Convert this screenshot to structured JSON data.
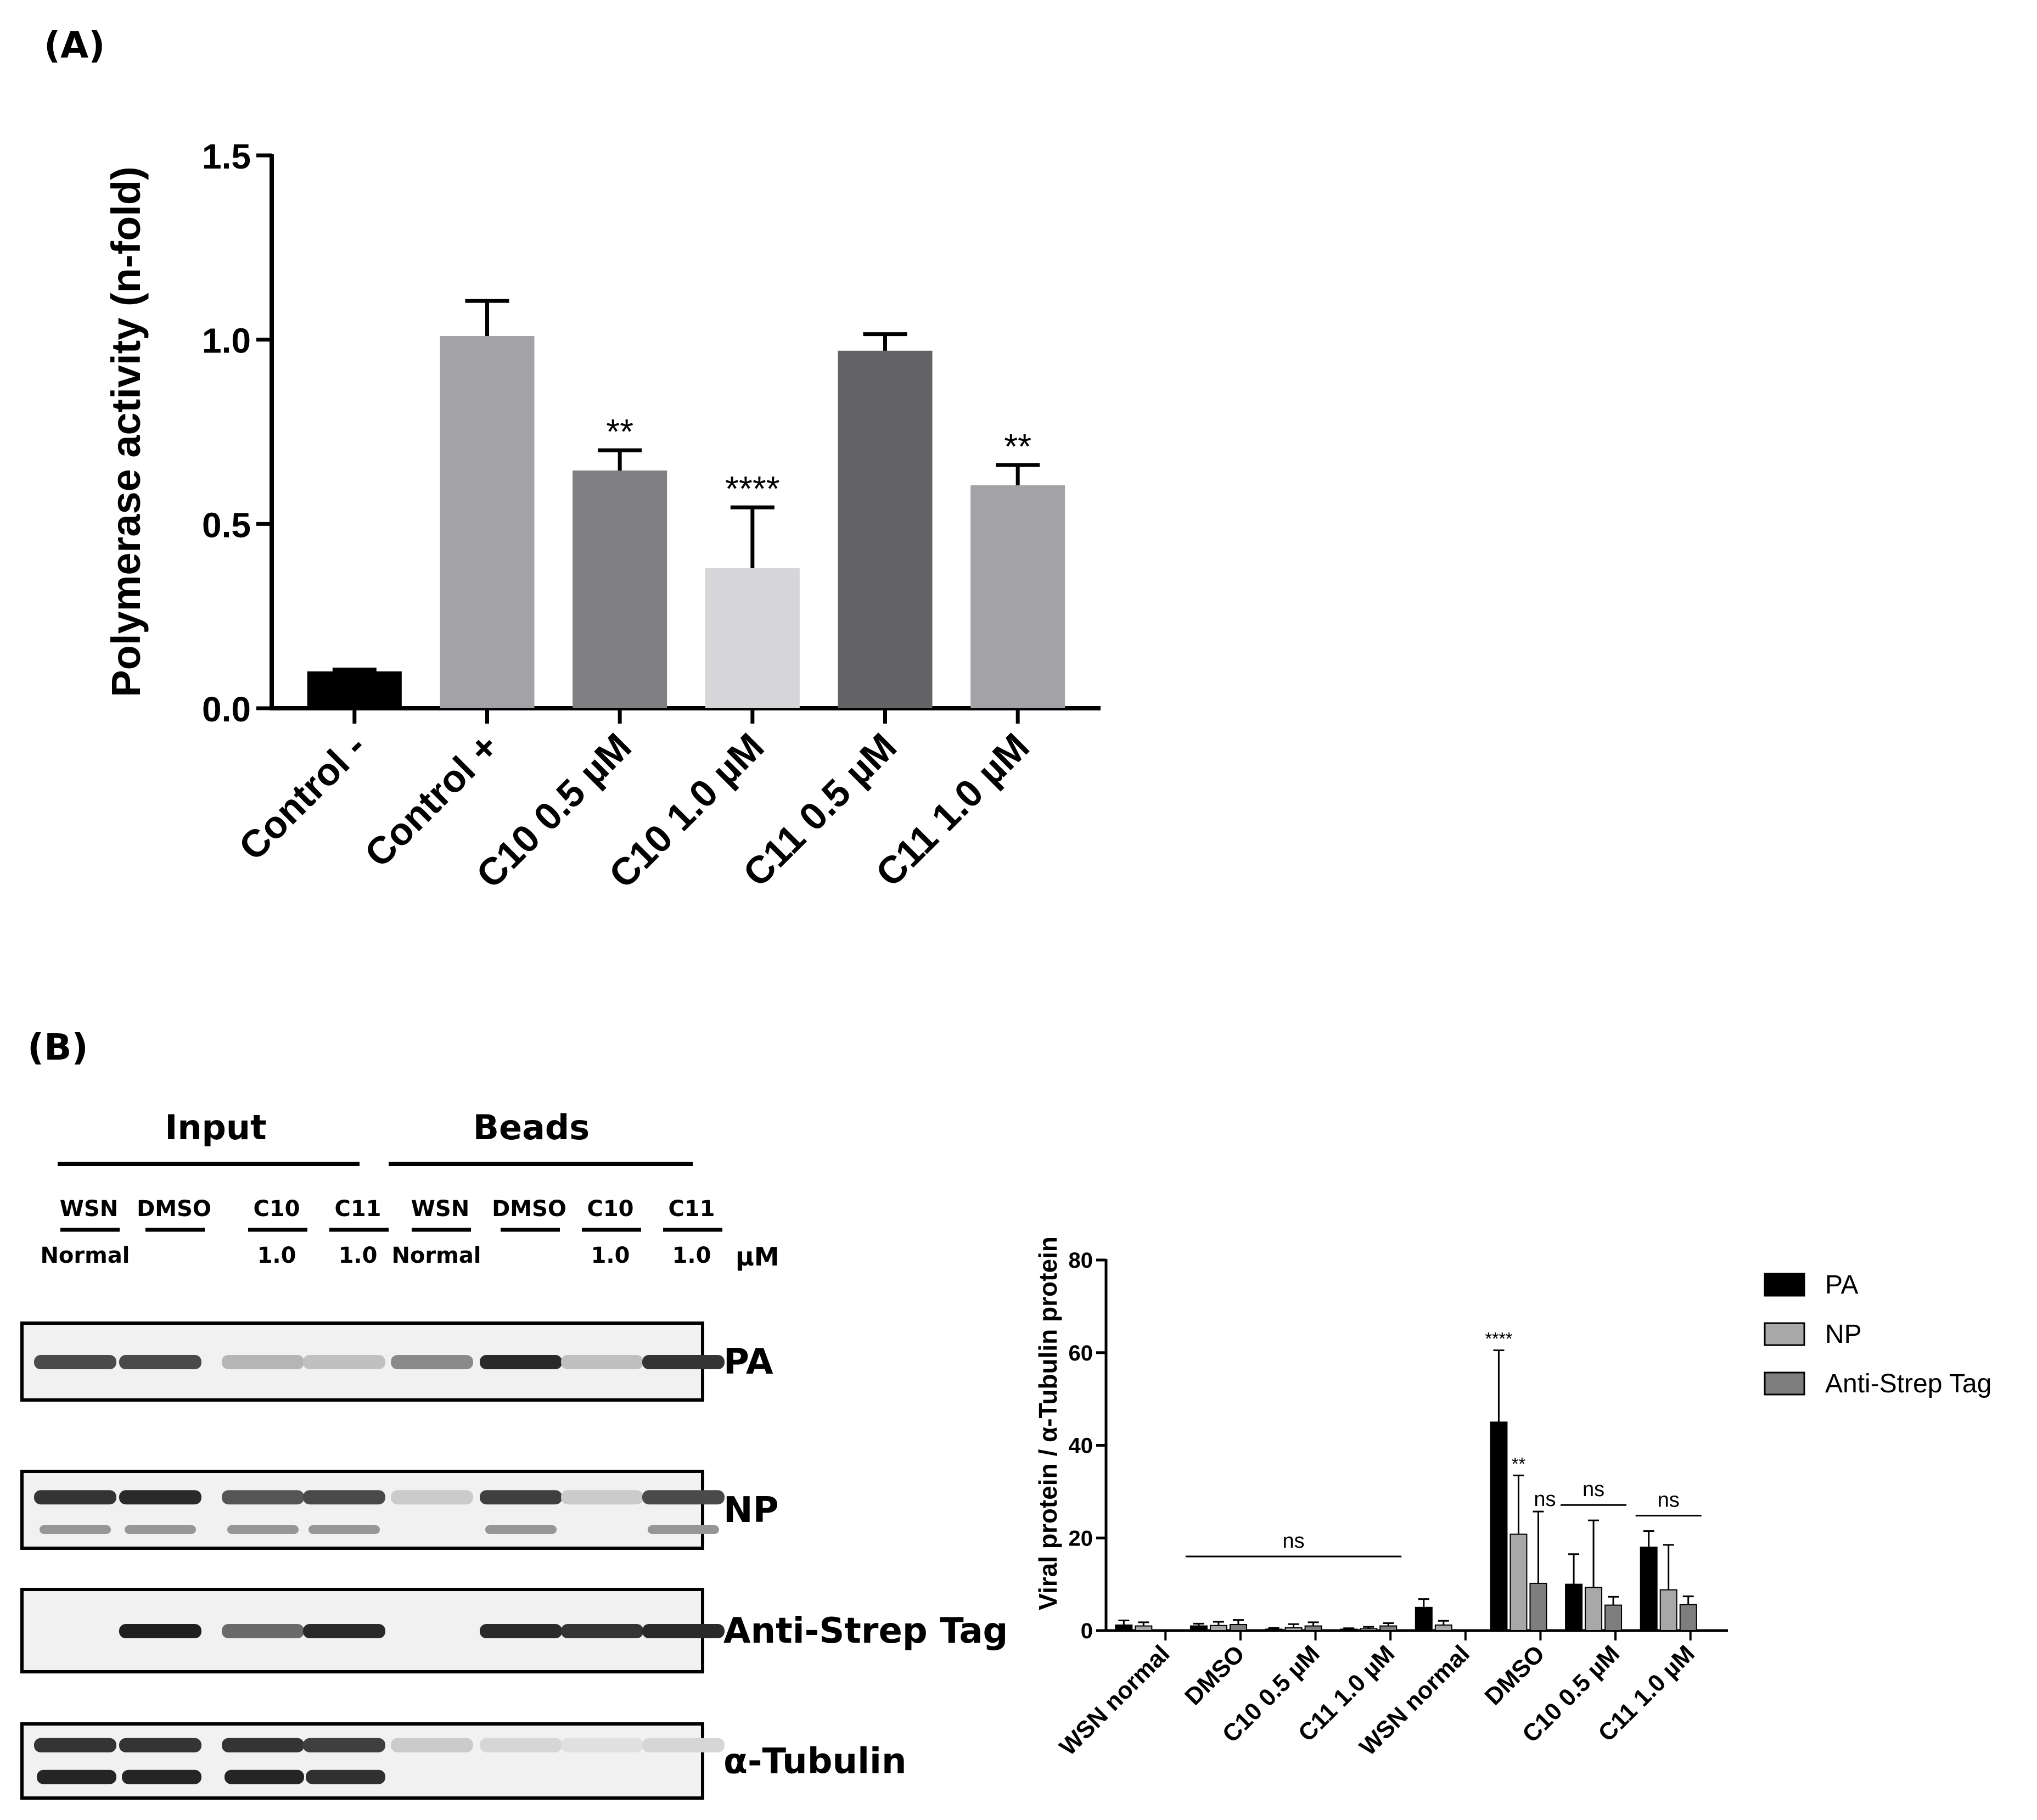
{
  "panel_a_label": "(A)",
  "panel_b_label": "(B)",
  "chart_data": [
    {
      "type": "bar",
      "ylabel": "Polymerase activity (n-fold)",
      "ylim": [
        0,
        1.5
      ],
      "yticks": [
        "0.0",
        "0.5",
        "1.0",
        "1.5"
      ],
      "categories": [
        "Control -",
        "Control +",
        "C10 0.5 µM",
        "C10 1.0 µM",
        "C11 0.5 µM",
        "C11 1.0 µM"
      ],
      "values": [
        0.1,
        1.01,
        0.645,
        0.38,
        0.97,
        0.605
      ],
      "errors": [
        0.005,
        0.095,
        0.055,
        0.165,
        0.045,
        0.055
      ],
      "colors": [
        "#000000",
        "#a3a3a7",
        "#808082",
        "#d6d6d8",
        "#636365",
        "#a3a3a7"
      ],
      "annotations": [
        "",
        "",
        "**",
        "****",
        "",
        "**"
      ],
      "grid": false
    },
    {
      "type": "bar",
      "ylabel": "Viral protein / α-Tubulin protein",
      "ylim": [
        0,
        80
      ],
      "yticks": [
        "0",
        "20",
        "40",
        "60",
        "80"
      ],
      "categories": [
        "WSN normal",
        "DMSO",
        "C10 0.5 µM",
        "C11 1.0 µM",
        "WSN normal",
        "DMSO",
        "C10 0.5 µM",
        "C11 1.0 µM"
      ],
      "legend_position": "top-right",
      "series": [
        {
          "name": "PA",
          "color": "#000000",
          "values": [
            1.2,
            1.0,
            0.3,
            0.3,
            5.0,
            45.0,
            10.0,
            18.0
          ],
          "errors": [
            1.0,
            0.5,
            0.3,
            0.2,
            1.8,
            15.5,
            6.5,
            3.5
          ]
        },
        {
          "name": "NP",
          "color": "#a8a8a8",
          "values": [
            1.0,
            1.1,
            0.6,
            0.4,
            1.2,
            20.8,
            9.3,
            8.8
          ],
          "errors": [
            0.8,
            0.8,
            0.8,
            0.4,
            0.9,
            12.7,
            14.5,
            9.7
          ]
        },
        {
          "name": "Anti-Strep Tag",
          "color": "#7e7e7e",
          "values": [
            null,
            1.3,
            1.0,
            1.0,
            null,
            10.2,
            5.5,
            5.6
          ],
          "errors": [
            null,
            1.0,
            0.8,
            0.6,
            null,
            15.5,
            1.8,
            1.8
          ]
        }
      ],
      "annotations": [
        {
          "text": "****",
          "category": 5,
          "series": 0
        },
        {
          "text": "**",
          "category": 5,
          "series": 1
        },
        {
          "text": "ns",
          "category": 5,
          "series": 2
        },
        {
          "text": "ns",
          "from": 1,
          "to": 3
        },
        {
          "text": "ns",
          "from": 6,
          "to": 6
        },
        {
          "text": "ns",
          "from": 7,
          "to": 7
        }
      ]
    }
  ],
  "western_blot": {
    "groups": [
      "Input",
      "Beads"
    ],
    "lanes": [
      "WSN",
      "DMSO",
      "C10",
      "C11",
      "WSN",
      "DMSO",
      "C10",
      "C11"
    ],
    "sublabels": [
      "Normal",
      "",
      "1.0",
      "1.0",
      "Normal",
      "",
      "1.0",
      "1.0"
    ],
    "unit": "µM",
    "rows": [
      {
        "label": "PA",
        "bands": [
          0.75,
          0.75,
          0.25,
          0.2,
          0.45,
          0.9,
          0.2,
          0.85
        ]
      },
      {
        "label": "NP",
        "bands": [
          0.85,
          0.9,
          0.7,
          0.75,
          0.15,
          0.8,
          0.15,
          0.75
        ]
      },
      {
        "label": "Anti-Strep Tag",
        "bands": [
          0.0,
          0.95,
          0.6,
          0.9,
          0.0,
          0.9,
          0.85,
          0.9
        ]
      },
      {
        "label": "α-Tubulin",
        "bands": [
          0.85,
          0.85,
          0.85,
          0.8,
          0.15,
          0.1,
          0.05,
          0.1
        ]
      }
    ]
  }
}
